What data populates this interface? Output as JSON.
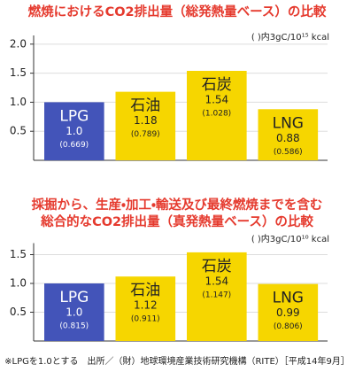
{
  "chart_data": [
    {
      "type": "bar",
      "title_lines": [
        "燃焼におけるCO2排出量（総発熱量ベース）の比較"
      ],
      "unit_note": "( )内3gC/10¹⁵ kcal",
      "categories": [
        "LPG",
        "石油",
        "石炭",
        "LNG"
      ],
      "values": [
        1.0,
        1.18,
        1.54,
        0.88
      ],
      "value_labels": [
        "1.0",
        "1.18",
        "1.54",
        "0.88"
      ],
      "sub_values": [
        0.669,
        0.789,
        1.028,
        0.586
      ],
      "sub_value_labels": [
        "(0.669)",
        "(0.789)",
        "(1.028)",
        "(0.586)"
      ],
      "colors": [
        "#4354b9",
        "#f6d600",
        "#f6d600",
        "#f6d600"
      ],
      "ylim": [
        0,
        2.15
      ],
      "yticks": [
        0.5,
        {
          "value": 1.0,
          "label": "1.0"
        },
        1.5,
        {
          "value": 2.0,
          "label": "2.0"
        }
      ],
      "grid": true
    },
    {
      "type": "bar",
      "title_lines": [
        "採掘から、生産・加工・輸送及び最終燃焼までを含む",
        "総合的なCO2排出量（真発熱量ベース）の比較"
      ],
      "unit_note": "( )内3gC/10¹⁰ kcal",
      "categories": [
        "LPG",
        "石油",
        "石炭",
        "LNG"
      ],
      "values": [
        1.0,
        1.12,
        1.54,
        0.99
      ],
      "value_labels": [
        "1.0",
        "1.12",
        "1.54",
        "0.99"
      ],
      "sub_values": [
        0.815,
        0.911,
        1.147,
        0.806
      ],
      "sub_value_labels": [
        "(0.815)",
        "(0.911)",
        "(1.147)",
        "(0.806)"
      ],
      "colors": [
        "#4354b9",
        "#f6d600",
        "#f6d600",
        "#f6d600"
      ],
      "ylim": [
        0,
        1.7
      ],
      "yticks": [
        0.5,
        {
          "value": 1.0,
          "label": "1.0"
        },
        1.5
      ],
      "grid": true
    }
  ],
  "footnote": "※LPGを1.0とする　出所／（財）地球環境産業技術研究機構（RITE）［平成14年9月］"
}
